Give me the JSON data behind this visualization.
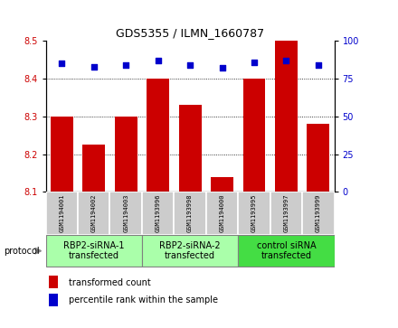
{
  "title": "GDS5355 / ILMN_1660787",
  "samples": [
    "GSM1194001",
    "GSM1194002",
    "GSM1194003",
    "GSM1193996",
    "GSM1193998",
    "GSM1194000",
    "GSM1193995",
    "GSM1193997",
    "GSM1193999"
  ],
  "bar_values": [
    8.3,
    8.225,
    8.3,
    8.4,
    8.33,
    8.14,
    8.4,
    8.5,
    8.28
  ],
  "percentile_values": [
    85,
    83,
    84,
    87,
    84,
    82,
    86,
    87,
    84
  ],
  "bar_color": "#cc0000",
  "dot_color": "#0000cc",
  "ylim_left": [
    8.1,
    8.5
  ],
  "ylim_right": [
    0,
    100
  ],
  "yticks_left": [
    8.1,
    8.2,
    8.3,
    8.4,
    8.5
  ],
  "yticks_right": [
    0,
    25,
    50,
    75,
    100
  ],
  "groups": [
    {
      "label": "RBP2-siRNA-1\ntransfected",
      "indices": [
        0,
        1,
        2
      ],
      "color": "#aaffaa"
    },
    {
      "label": "RBP2-siRNA-2\ntransfected",
      "indices": [
        3,
        4,
        5
      ],
      "color": "#aaffaa"
    },
    {
      "label": "control siRNA\ntransfected",
      "indices": [
        6,
        7,
        8
      ],
      "color": "#44dd44"
    }
  ],
  "legend_bar_label": "transformed count",
  "legend_dot_label": "percentile rank within the sample",
  "protocol_label": "protocol",
  "bar_width": 0.7,
  "baseline": 8.1,
  "sample_box_color": "#cccccc",
  "grid_ticks": [
    8.2,
    8.3,
    8.4
  ],
  "title_fontsize": 9,
  "tick_fontsize": 7,
  "sample_fontsize": 5,
  "group_fontsize": 7,
  "legend_fontsize": 7
}
